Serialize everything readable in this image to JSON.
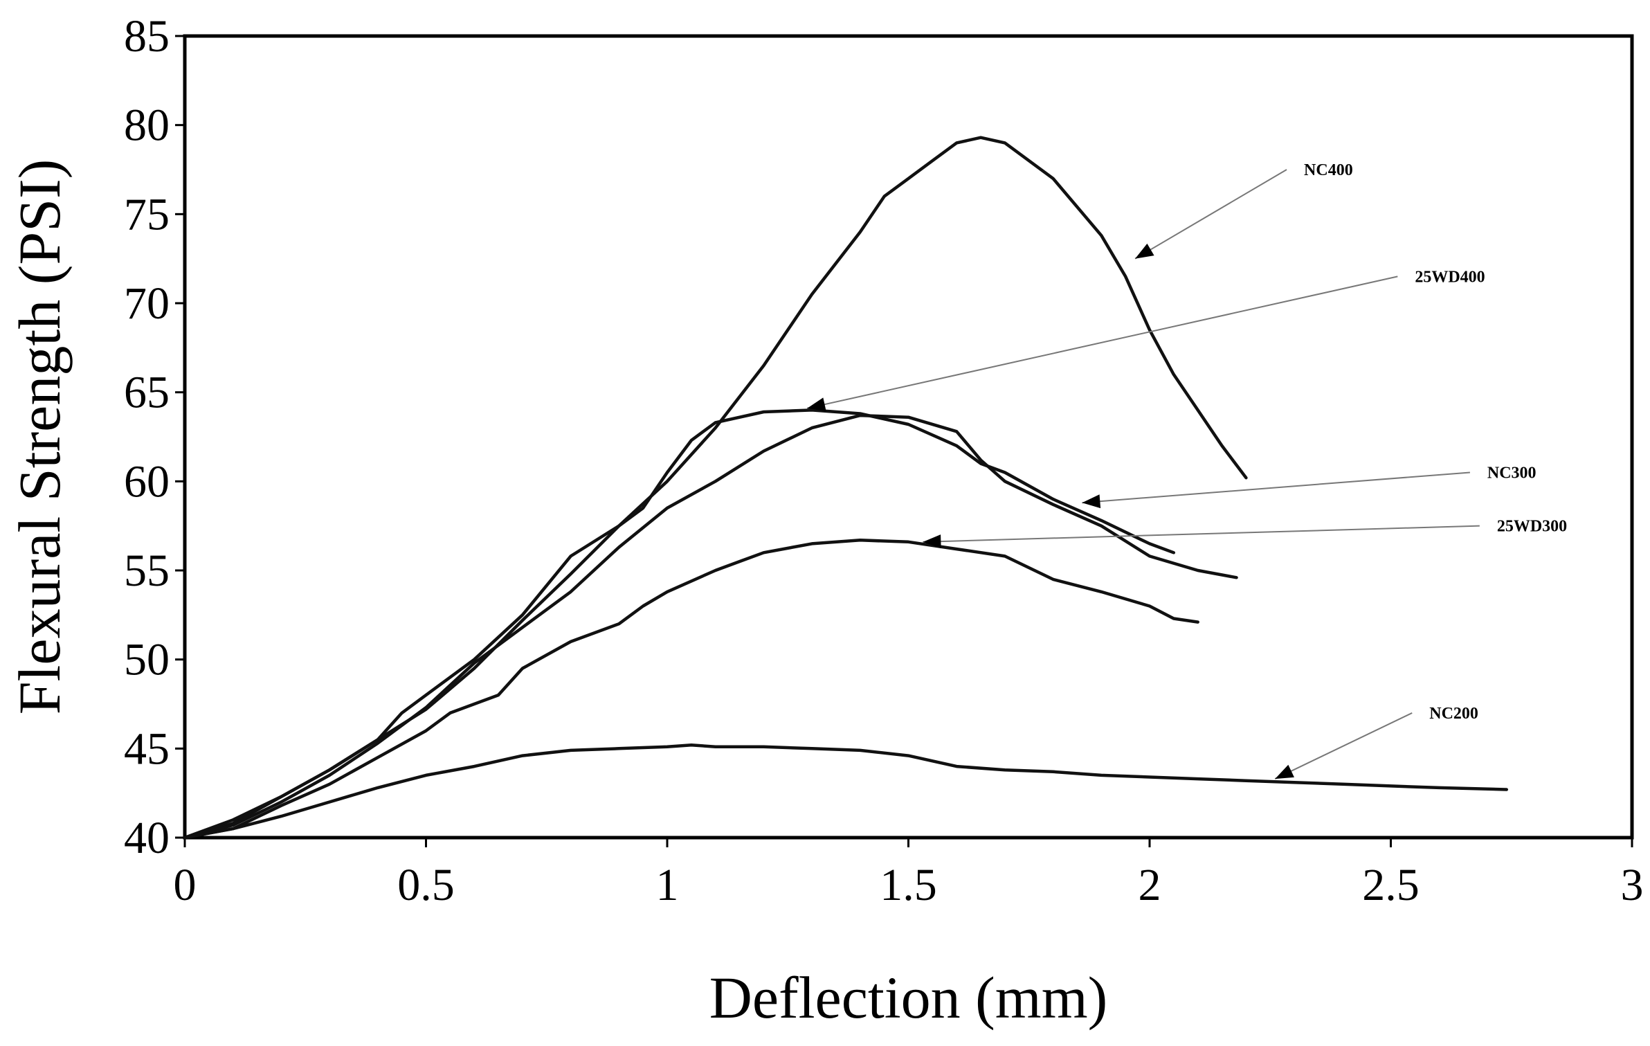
{
  "chart_data": {
    "type": "line",
    "title": "",
    "xlabel": "Deflection (mm)",
    "ylabel": "Flexural Strength (PSI)",
    "xlim": [
      0,
      3
    ],
    "ylim": [
      40,
      85
    ],
    "xticks": [
      0,
      0.5,
      1,
      1.5,
      2,
      2.5,
      3
    ],
    "xtick_labels": [
      "0",
      "0.5",
      "1",
      "1.5",
      "2",
      "2.5",
      "3"
    ],
    "yticks": [
      40,
      45,
      50,
      55,
      60,
      65,
      70,
      75,
      80,
      85
    ],
    "ytick_labels": [
      "40",
      "45",
      "50",
      "55",
      "60",
      "65",
      "70",
      "75",
      "80",
      "85"
    ],
    "grid": false,
    "series": [
      {
        "name": "NC400",
        "x": [
          0,
          0.1,
          0.2,
          0.3,
          0.4,
          0.5,
          0.6,
          0.7,
          0.8,
          0.9,
          1.0,
          1.1,
          1.2,
          1.3,
          1.4,
          1.45,
          1.5,
          1.55,
          1.6,
          1.65,
          1.7,
          1.8,
          1.9,
          1.95,
          2.0,
          2.05,
          2.1,
          2.15,
          2.2
        ],
        "values": [
          40,
          40.8,
          42.3,
          43.8,
          45.5,
          47.2,
          49.5,
          52.2,
          54.8,
          57.5,
          60.0,
          63.0,
          66.5,
          70.5,
          74.0,
          76.0,
          77.0,
          78.0,
          79.0,
          79.3,
          79.0,
          77.0,
          73.8,
          71.5,
          68.5,
          66.0,
          64.0,
          62.0,
          60.2
        ]
      },
      {
        "name": "25WD400",
        "x": [
          0,
          0.1,
          0.2,
          0.3,
          0.4,
          0.45,
          0.5,
          0.6,
          0.7,
          0.8,
          0.9,
          0.95,
          1.0,
          1.05,
          1.1,
          1.2,
          1.3,
          1.4,
          1.5,
          1.6,
          1.65,
          1.7,
          1.8,
          1.9,
          2.0,
          2.05
        ],
        "values": [
          40,
          41,
          42.3,
          43.8,
          45.5,
          47.0,
          48.0,
          50.0,
          52.5,
          55.8,
          57.5,
          58.5,
          60.5,
          62.3,
          63.3,
          63.9,
          64.0,
          63.8,
          63.2,
          62.0,
          61.0,
          60.5,
          59.0,
          57.8,
          56.5,
          56.0
        ]
      },
      {
        "name": "NC300",
        "x": [
          0,
          0.1,
          0.2,
          0.3,
          0.4,
          0.5,
          0.6,
          0.7,
          0.8,
          0.9,
          1.0,
          1.1,
          1.2,
          1.3,
          1.4,
          1.5,
          1.6,
          1.65,
          1.7,
          1.8,
          1.9,
          2.0,
          2.1,
          2.18
        ],
        "values": [
          40,
          40.7,
          42.0,
          43.5,
          45.3,
          47.3,
          49.8,
          51.8,
          53.8,
          56.3,
          58.5,
          60.0,
          61.7,
          63.0,
          63.7,
          63.6,
          62.8,
          61.2,
          60.0,
          58.7,
          57.5,
          55.8,
          55.0,
          54.6
        ]
      },
      {
        "name": "25WD300",
        "x": [
          0,
          0.1,
          0.2,
          0.3,
          0.4,
          0.5,
          0.55,
          0.65,
          0.7,
          0.8,
          0.9,
          0.95,
          1.0,
          1.1,
          1.15,
          1.2,
          1.3,
          1.4,
          1.5,
          1.6,
          1.7,
          1.8,
          1.9,
          2.0,
          2.05,
          2.1
        ],
        "values": [
          40,
          40.5,
          41.8,
          43.0,
          44.5,
          46.0,
          47.0,
          48.0,
          49.5,
          51.0,
          52.0,
          53.0,
          53.8,
          55.0,
          55.5,
          56.0,
          56.5,
          56.7,
          56.6,
          56.2,
          55.8,
          54.5,
          53.8,
          53.0,
          52.3,
          52.1
        ]
      },
      {
        "name": "NC200",
        "x": [
          0,
          0.1,
          0.2,
          0.3,
          0.4,
          0.5,
          0.6,
          0.7,
          0.8,
          0.9,
          1.0,
          1.05,
          1.1,
          1.2,
          1.3,
          1.4,
          1.5,
          1.6,
          1.7,
          1.8,
          1.9,
          2.0,
          2.1,
          2.2,
          2.3,
          2.4,
          2.5,
          2.6,
          2.74
        ],
        "values": [
          40,
          40.5,
          41.2,
          42.0,
          42.8,
          43.5,
          44.0,
          44.6,
          44.9,
          45.0,
          45.1,
          45.2,
          45.1,
          45.1,
          45.0,
          44.9,
          44.6,
          44.0,
          43.8,
          43.7,
          43.5,
          43.4,
          43.3,
          43.2,
          43.1,
          43.0,
          42.9,
          42.8,
          42.7
        ]
      }
    ],
    "annotations": [
      {
        "text": "NC400",
        "target": [
          1.97,
          72.5
        ],
        "label_at": [
          2.32,
          77.5
        ]
      },
      {
        "text": "25WD400",
        "target": [
          1.29,
          64.1
        ],
        "label_at": [
          2.55,
          71.5
        ]
      },
      {
        "text": "NC300",
        "target": [
          1.86,
          58.8
        ],
        "label_at": [
          2.7,
          60.5
        ]
      },
      {
        "text": "25WD300",
        "target": [
          1.53,
          56.6
        ],
        "label_at": [
          2.72,
          57.5
        ]
      },
      {
        "text": "NC200",
        "target": [
          2.26,
          43.3
        ],
        "label_at": [
          2.58,
          47.0
        ]
      }
    ]
  }
}
